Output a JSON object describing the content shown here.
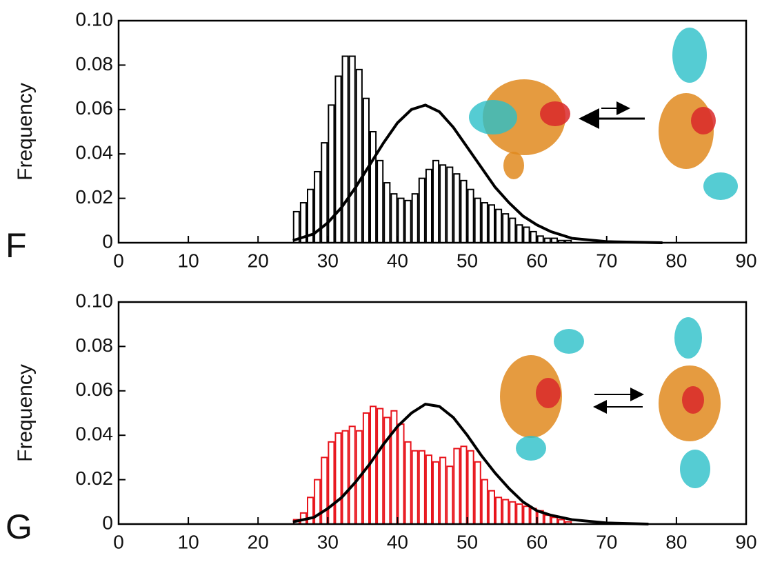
{
  "chart_data": [
    {
      "type": "histogram",
      "panel_label": "F",
      "ylabel": "Frequency",
      "color": "#000000",
      "bins": [
        25,
        26,
        27,
        28,
        29,
        30,
        31,
        32,
        33,
        34,
        35,
        36,
        37,
        38,
        39,
        40,
        41,
        42,
        43,
        44,
        45,
        46,
        47,
        48,
        49,
        50,
        51,
        52,
        53,
        54,
        55,
        56,
        57,
        58,
        59,
        60,
        61,
        62,
        63,
        64,
        65
      ],
      "counts": [
        0.014,
        0.018,
        0.024,
        0.032,
        0.045,
        0.062,
        0.075,
        0.084,
        0.084,
        0.078,
        0.065,
        0.05,
        0.037,
        0.027,
        0.022,
        0.02,
        0.019,
        0.022,
        0.029,
        0.033,
        0.037,
        0.035,
        0.034,
        0.031,
        0.028,
        0.024,
        0.02,
        0.018,
        0.017,
        0.015,
        0.013,
        0.011,
        0.008,
        0.007,
        0.005,
        0.003,
        0.002,
        0.002,
        0.001,
        0.001
      ],
      "curve": {
        "color": "#000000",
        "x": [
          25,
          28,
          30,
          32,
          34,
          36,
          38,
          40,
          42,
          44,
          46,
          48,
          50,
          52,
          54,
          56,
          58,
          60,
          62,
          65,
          70,
          78
        ],
        "values": [
          0.001,
          0.004,
          0.009,
          0.016,
          0.025,
          0.035,
          0.045,
          0.054,
          0.06,
          0.062,
          0.059,
          0.052,
          0.043,
          0.034,
          0.025,
          0.018,
          0.012,
          0.008,
          0.005,
          0.002,
          0.0005,
          0
        ]
      },
      "xlim": [
        0,
        90
      ],
      "xticks": [
        0,
        10,
        20,
        30,
        40,
        50,
        60,
        70,
        80,
        90
      ],
      "ylim": [
        0,
        0.1
      ],
      "yticks": [
        0,
        0.02,
        0.04,
        0.06,
        0.08,
        {
          "value": 0.1,
          "label": "0.10"
        }
      ]
    },
    {
      "type": "histogram",
      "panel_label": "G",
      "ylabel": "Frequency",
      "color": "#e8141c",
      "bins": [
        25,
        26,
        27,
        28,
        29,
        30,
        31,
        32,
        33,
        34,
        35,
        36,
        37,
        38,
        39,
        40,
        41,
        42,
        43,
        44,
        45,
        46,
        47,
        48,
        49,
        50,
        51,
        52,
        53,
        54,
        55,
        56,
        57,
        58,
        59,
        60,
        61,
        62,
        63,
        64,
        65
      ],
      "counts": [
        0.002,
        0.005,
        0.012,
        0.02,
        0.03,
        0.037,
        0.041,
        0.042,
        0.044,
        0.042,
        0.05,
        0.053,
        0.052,
        0.048,
        0.051,
        0.045,
        0.037,
        0.033,
        0.033,
        0.031,
        0.028,
        0.03,
        0.026,
        0.034,
        0.035,
        0.033,
        0.028,
        0.02,
        0.015,
        0.012,
        0.011,
        0.01,
        0.009,
        0.008,
        0.007,
        0.006,
        0.004,
        0.003,
        0.002,
        0.001
      ],
      "curve": {
        "color": "#000000",
        "x": [
          25,
          28,
          30,
          32,
          34,
          36,
          38,
          40,
          42,
          44,
          46,
          48,
          50,
          52,
          54,
          56,
          58,
          60,
          62,
          65,
          70,
          76
        ],
        "values": [
          0.001,
          0.003,
          0.007,
          0.012,
          0.019,
          0.027,
          0.036,
          0.044,
          0.05,
          0.054,
          0.053,
          0.048,
          0.04,
          0.031,
          0.023,
          0.016,
          0.01,
          0.006,
          0.004,
          0.002,
          0.0005,
          0
        ]
      },
      "xlim": [
        0,
        90
      ],
      "xticks": [
        0,
        10,
        20,
        30,
        40,
        50,
        60,
        70,
        80,
        90
      ],
      "ylim": [
        0,
        0.1
      ],
      "yticks": [
        0,
        0.02,
        0.04,
        0.06,
        0.08,
        {
          "value": 0.1,
          "label": "0.10"
        }
      ]
    }
  ]
}
